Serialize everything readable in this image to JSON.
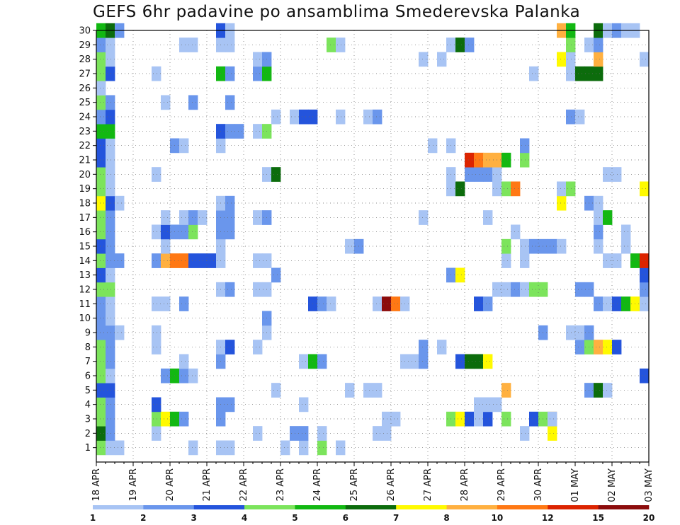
{
  "chart_data": {
    "type": "heatmap",
    "title": "GEFS 6hr padavine po ansamblima Smederevska Palanka",
    "y_ticks": [
      "1",
      "2",
      "3",
      "4",
      "5",
      "6",
      "7",
      "8",
      "9",
      "10",
      "11",
      "12",
      "13",
      "14",
      "15",
      "16",
      "17",
      "18",
      "19",
      "20",
      "21",
      "22",
      "23",
      "24",
      "25",
      "26",
      "27",
      "28",
      "29",
      "30"
    ],
    "x_ticks": [
      "18 APR",
      "19 APR",
      "20 APR",
      "21 APR",
      "22 APR",
      "23 APR",
      "24 APR",
      "25 APR",
      "26 APR",
      "27 APR",
      "28 APR",
      "29 APR",
      "30 APR",
      "01 MAY",
      "02 MAY",
      "03 MAY"
    ],
    "x_steps": 60,
    "steps_per_day": 4,
    "legend": {
      "labels": [
        "1",
        "2",
        "3",
        "4",
        "5",
        "6",
        "7",
        "8",
        "10",
        "12",
        "15",
        "20"
      ],
      "colors": [
        "#a8c4f4",
        "#6a96ec",
        "#2454dc",
        "#7ce45c",
        "#12b812",
        "#0c6c0c",
        "#fffa00",
        "#ffb040",
        "#ff7814",
        "#dc2400",
        "#8c0c0c"
      ]
    },
    "levels": [
      1,
      2,
      3,
      4,
      5,
      6,
      7,
      8,
      10,
      12,
      15,
      20
    ],
    "grid": true,
    "cells": [
      [
        0,
        1,
        4
      ],
      [
        1,
        1,
        1
      ],
      [
        2,
        1,
        1
      ],
      [
        10,
        1,
        1
      ],
      [
        13,
        1,
        1
      ],
      [
        14,
        1,
        1
      ],
      [
        20,
        1,
        1
      ],
      [
        22,
        1,
        1
      ],
      [
        24,
        1,
        4
      ],
      [
        26,
        1,
        1
      ],
      [
        0,
        2,
        6
      ],
      [
        1,
        2,
        2
      ],
      [
        6,
        2,
        1
      ],
      [
        17,
        2,
        1
      ],
      [
        21,
        2,
        2
      ],
      [
        22,
        2,
        2
      ],
      [
        24,
        2,
        1
      ],
      [
        30,
        2,
        1
      ],
      [
        31,
        2,
        1
      ],
      [
        46,
        2,
        1
      ],
      [
        49,
        2,
        7
      ],
      [
        49,
        3,
        8
      ],
      [
        0,
        3,
        4
      ],
      [
        1,
        3,
        2
      ],
      [
        6,
        3,
        4
      ],
      [
        7,
        3,
        7
      ],
      [
        8,
        3,
        5
      ],
      [
        9,
        3,
        2
      ],
      [
        13,
        3,
        2
      ],
      [
        31,
        3,
        1
      ],
      [
        32,
        3,
        1
      ],
      [
        38,
        3,
        4
      ],
      [
        39,
        3,
        7
      ],
      [
        40,
        3,
        3
      ],
      [
        41,
        3,
        1
      ],
      [
        42,
        3,
        3
      ],
      [
        44,
        3,
        4
      ],
      [
        47,
        3,
        3
      ],
      [
        48,
        3,
        4
      ],
      [
        49,
        3,
        1
      ],
      [
        0,
        4,
        4
      ],
      [
        1,
        4,
        2
      ],
      [
        6,
        4,
        3
      ],
      [
        13,
        4,
        2
      ],
      [
        14,
        4,
        2
      ],
      [
        22,
        4,
        1
      ],
      [
        41,
        4,
        1
      ],
      [
        42,
        4,
        1
      ],
      [
        43,
        4,
        1
      ],
      [
        0,
        5,
        3
      ],
      [
        1,
        5,
        3
      ],
      [
        19,
        5,
        1
      ],
      [
        27,
        5,
        1
      ],
      [
        29,
        5,
        1
      ],
      [
        30,
        5,
        1
      ],
      [
        44,
        5,
        8
      ],
      [
        53,
        5,
        2
      ],
      [
        54,
        5,
        6
      ],
      [
        55,
        5,
        1
      ],
      [
        0,
        6,
        4
      ],
      [
        1,
        6,
        1
      ],
      [
        7,
        6,
        2
      ],
      [
        8,
        6,
        5
      ],
      [
        9,
        6,
        2
      ],
      [
        10,
        6,
        1
      ],
      [
        59,
        6,
        3
      ],
      [
        0,
        7,
        4
      ],
      [
        1,
        7,
        2
      ],
      [
        9,
        7,
        1
      ],
      [
        13,
        7,
        2
      ],
      [
        22,
        7,
        1
      ],
      [
        23,
        7,
        5
      ],
      [
        24,
        7,
        2
      ],
      [
        33,
        7,
        1
      ],
      [
        34,
        7,
        1
      ],
      [
        35,
        7,
        2
      ],
      [
        39,
        7,
        3
      ],
      [
        40,
        7,
        6
      ],
      [
        41,
        7,
        6
      ],
      [
        42,
        7,
        7
      ],
      [
        0,
        8,
        4
      ],
      [
        1,
        8,
        2
      ],
      [
        6,
        8,
        1
      ],
      [
        13,
        8,
        1
      ],
      [
        14,
        8,
        3
      ],
      [
        17,
        8,
        1
      ],
      [
        35,
        8,
        2
      ],
      [
        37,
        8,
        1
      ],
      [
        52,
        8,
        2
      ],
      [
        53,
        8,
        4
      ],
      [
        54,
        8,
        8
      ],
      [
        55,
        8,
        7
      ],
      [
        56,
        8,
        3
      ],
      [
        0,
        9,
        2
      ],
      [
        1,
        9,
        2
      ],
      [
        2,
        9,
        1
      ],
      [
        6,
        9,
        1
      ],
      [
        18,
        9,
        1
      ],
      [
        48,
        9,
        2
      ],
      [
        51,
        9,
        1
      ],
      [
        52,
        9,
        1
      ],
      [
        53,
        9,
        2
      ],
      [
        0,
        10,
        2
      ],
      [
        1,
        10,
        1
      ],
      [
        18,
        10,
        2
      ],
      [
        0,
        11,
        2
      ],
      [
        1,
        11,
        1
      ],
      [
        6,
        11,
        1
      ],
      [
        7,
        11,
        1
      ],
      [
        9,
        11,
        2
      ],
      [
        23,
        11,
        3
      ],
      [
        24,
        11,
        2
      ],
      [
        25,
        11,
        1
      ],
      [
        30,
        11,
        1
      ],
      [
        31,
        11,
        11
      ],
      [
        32,
        11,
        9
      ],
      [
        33,
        11,
        1
      ],
      [
        41,
        11,
        3
      ],
      [
        42,
        11,
        2
      ],
      [
        54,
        11,
        2
      ],
      [
        55,
        11,
        1
      ],
      [
        56,
        11,
        3
      ],
      [
        57,
        11,
        5
      ],
      [
        58,
        11,
        7
      ],
      [
        59,
        11,
        1
      ],
      [
        0,
        12,
        4
      ],
      [
        1,
        12,
        4
      ],
      [
        13,
        12,
        1
      ],
      [
        14,
        12,
        2
      ],
      [
        17,
        12,
        1
      ],
      [
        18,
        12,
        1
      ],
      [
        43,
        12,
        1
      ],
      [
        44,
        12,
        1
      ],
      [
        45,
        12,
        2
      ],
      [
        46,
        12,
        1
      ],
      [
        47,
        12,
        4
      ],
      [
        48,
        12,
        4
      ],
      [
        52,
        12,
        2
      ],
      [
        53,
        12,
        2
      ],
      [
        59,
        12,
        2
      ],
      [
        0,
        13,
        3
      ],
      [
        1,
        13,
        1
      ],
      [
        19,
        13,
        2
      ],
      [
        38,
        13,
        2
      ],
      [
        39,
        13,
        7
      ],
      [
        59,
        13,
        3
      ],
      [
        0,
        14,
        4
      ],
      [
        1,
        14,
        2
      ],
      [
        2,
        14,
        2
      ],
      [
        6,
        14,
        2
      ],
      [
        7,
        14,
        8
      ],
      [
        8,
        14,
        9
      ],
      [
        9,
        14,
        9
      ],
      [
        10,
        14,
        3
      ],
      [
        11,
        14,
        3
      ],
      [
        12,
        14,
        3
      ],
      [
        13,
        14,
        1
      ],
      [
        17,
        14,
        1
      ],
      [
        18,
        14,
        1
      ],
      [
        44,
        14,
        1
      ],
      [
        46,
        14,
        1
      ],
      [
        55,
        14,
        1
      ],
      [
        56,
        14,
        1
      ],
      [
        58,
        14,
        5
      ],
      [
        59,
        14,
        10
      ],
      [
        0,
        15,
        3
      ],
      [
        1,
        15,
        2
      ],
      [
        7,
        15,
        1
      ],
      [
        13,
        15,
        1
      ],
      [
        27,
        15,
        1
      ],
      [
        28,
        15,
        2
      ],
      [
        44,
        15,
        4
      ],
      [
        46,
        15,
        1
      ],
      [
        47,
        15,
        2
      ],
      [
        48,
        15,
        2
      ],
      [
        49,
        15,
        2
      ],
      [
        50,
        15,
        1
      ],
      [
        54,
        15,
        1
      ],
      [
        57,
        15,
        1
      ],
      [
        0,
        16,
        4
      ],
      [
        1,
        16,
        2
      ],
      [
        6,
        16,
        1
      ],
      [
        7,
        16,
        3
      ],
      [
        8,
        16,
        2
      ],
      [
        9,
        16,
        2
      ],
      [
        10,
        16,
        4
      ],
      [
        13,
        16,
        2
      ],
      [
        14,
        16,
        2
      ],
      [
        45,
        16,
        1
      ],
      [
        54,
        16,
        2
      ],
      [
        57,
        16,
        1
      ],
      [
        0,
        17,
        4
      ],
      [
        1,
        17,
        2
      ],
      [
        7,
        17,
        1
      ],
      [
        9,
        17,
        1
      ],
      [
        10,
        17,
        2
      ],
      [
        11,
        17,
        1
      ],
      [
        13,
        17,
        2
      ],
      [
        14,
        17,
        2
      ],
      [
        17,
        17,
        1
      ],
      [
        18,
        17,
        2
      ],
      [
        35,
        17,
        1
      ],
      [
        42,
        17,
        1
      ],
      [
        54,
        17,
        1
      ],
      [
        55,
        17,
        5
      ],
      [
        0,
        18,
        7
      ],
      [
        1,
        18,
        3
      ],
      [
        2,
        18,
        1
      ],
      [
        13,
        18,
        1
      ],
      [
        14,
        18,
        2
      ],
      [
        50,
        18,
        7
      ],
      [
        53,
        18,
        2
      ],
      [
        54,
        18,
        1
      ],
      [
        0,
        19,
        4
      ],
      [
        1,
        19,
        1
      ],
      [
        38,
        19,
        1
      ],
      [
        39,
        19,
        6
      ],
      [
        43,
        19,
        1
      ],
      [
        44,
        19,
        4
      ],
      [
        45,
        19,
        9
      ],
      [
        50,
        19,
        1
      ],
      [
        51,
        19,
        4
      ],
      [
        59,
        19,
        7
      ],
      [
        0,
        20,
        4
      ],
      [
        1,
        20,
        1
      ],
      [
        6,
        20,
        1
      ],
      [
        18,
        20,
        1
      ],
      [
        19,
        20,
        6
      ],
      [
        38,
        20,
        1
      ],
      [
        40,
        20,
        2
      ],
      [
        41,
        20,
        2
      ],
      [
        42,
        20,
        2
      ],
      [
        43,
        20,
        1
      ],
      [
        55,
        20,
        1
      ],
      [
        56,
        20,
        1
      ],
      [
        0,
        21,
        3
      ],
      [
        1,
        21,
        1
      ],
      [
        40,
        21,
        10
      ],
      [
        41,
        21,
        9
      ],
      [
        42,
        21,
        8
      ],
      [
        43,
        21,
        8
      ],
      [
        44,
        21,
        5
      ],
      [
        46,
        21,
        4
      ],
      [
        0,
        22,
        3
      ],
      [
        1,
        22,
        1
      ],
      [
        8,
        22,
        2
      ],
      [
        9,
        22,
        1
      ],
      [
        13,
        22,
        1
      ],
      [
        36,
        22,
        1
      ],
      [
        38,
        22,
        1
      ],
      [
        46,
        22,
        2
      ],
      [
        0,
        23,
        5
      ],
      [
        1,
        23,
        5
      ],
      [
        13,
        23,
        3
      ],
      [
        14,
        23,
        2
      ],
      [
        15,
        23,
        2
      ],
      [
        17,
        23,
        1
      ],
      [
        18,
        23,
        4
      ],
      [
        0,
        24,
        2
      ],
      [
        1,
        24,
        3
      ],
      [
        19,
        24,
        1
      ],
      [
        21,
        24,
        1
      ],
      [
        22,
        24,
        3
      ],
      [
        23,
        24,
        3
      ],
      [
        26,
        24,
        1
      ],
      [
        29,
        24,
        1
      ],
      [
        30,
        24,
        2
      ],
      [
        51,
        24,
        2
      ],
      [
        52,
        24,
        1
      ],
      [
        0,
        25,
        4
      ],
      [
        1,
        25,
        2
      ],
      [
        7,
        25,
        1
      ],
      [
        10,
        25,
        2
      ],
      [
        14,
        25,
        2
      ],
      [
        0,
        26,
        1
      ],
      [
        0,
        27,
        4
      ],
      [
        1,
        27,
        3
      ],
      [
        6,
        27,
        1
      ],
      [
        13,
        27,
        5
      ],
      [
        14,
        27,
        2
      ],
      [
        17,
        27,
        2
      ],
      [
        18,
        27,
        5
      ],
      [
        47,
        27,
        1
      ],
      [
        51,
        27,
        1
      ],
      [
        52,
        27,
        6
      ],
      [
        53,
        27,
        6
      ],
      [
        54,
        27,
        6
      ],
      [
        0,
        28,
        4
      ],
      [
        1,
        28,
        1
      ],
      [
        17,
        28,
        1
      ],
      [
        18,
        28,
        2
      ],
      [
        35,
        28,
        1
      ],
      [
        37,
        28,
        1
      ],
      [
        50,
        28,
        7
      ],
      [
        51,
        28,
        1
      ],
      [
        54,
        28,
        8
      ],
      [
        59,
        28,
        1
      ],
      [
        0,
        29,
        2
      ],
      [
        1,
        29,
        1
      ],
      [
        9,
        29,
        1
      ],
      [
        10,
        29,
        1
      ],
      [
        13,
        29,
        1
      ],
      [
        14,
        29,
        1
      ],
      [
        25,
        29,
        4
      ],
      [
        26,
        29,
        1
      ],
      [
        38,
        29,
        1
      ],
      [
        39,
        29,
        6
      ],
      [
        40,
        29,
        2
      ],
      [
        51,
        29,
        4
      ],
      [
        53,
        29,
        1
      ],
      [
        54,
        29,
        2
      ],
      [
        0,
        30,
        5
      ],
      [
        1,
        30,
        6
      ],
      [
        2,
        30,
        2
      ],
      [
        13,
        30,
        3
      ],
      [
        14,
        30,
        1
      ],
      [
        50,
        30,
        8
      ],
      [
        51,
        30,
        5
      ],
      [
        54,
        30,
        6
      ],
      [
        55,
        30,
        1
      ],
      [
        56,
        30,
        2
      ],
      [
        57,
        30,
        1
      ],
      [
        58,
        30,
        1
      ]
    ]
  }
}
